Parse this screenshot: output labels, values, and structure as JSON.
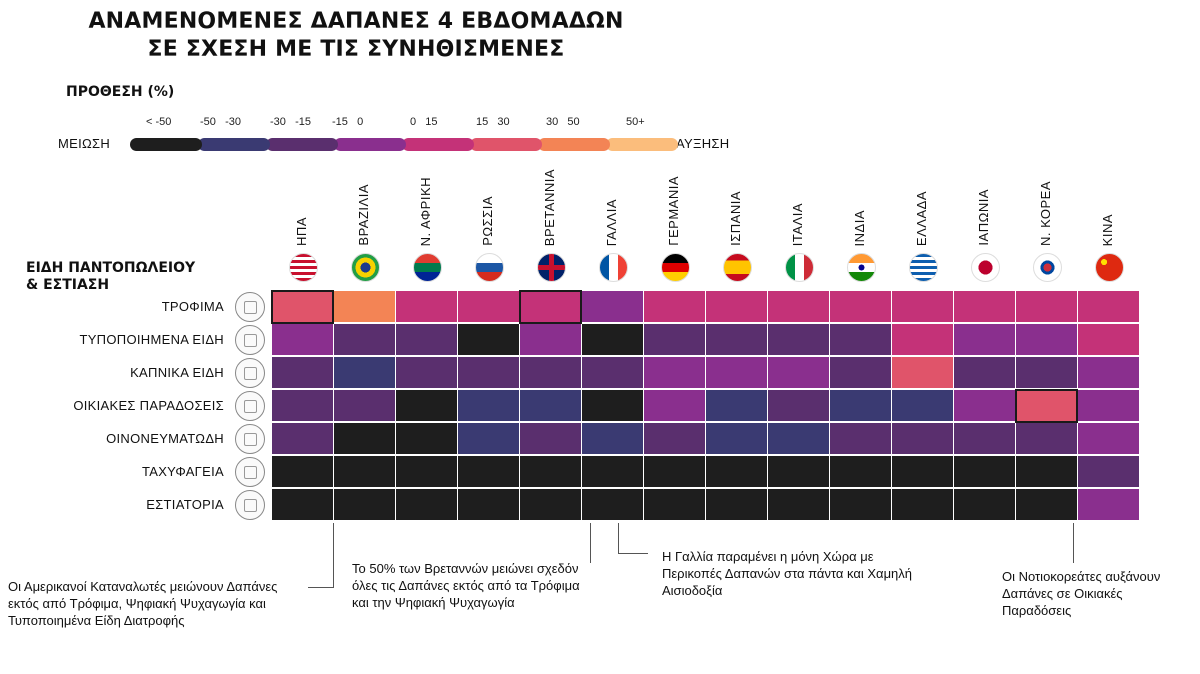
{
  "title": [
    "ΑΝΑΜΕΝΟΜΕΝΕΣ ΔΑΠΑΝΕΣ 4 ΕΒΔΟΜΑΔΩΝ",
    "ΣΕ ΣΧΕΣΗ ΜΕ ΤΙΣ ΣΥΝΗΘΙΣΜΕΝΕΣ"
  ],
  "legend": {
    "heading": "ΠΡΟΘΕΣΗ (%)",
    "left_word": "ΜΕΙΩΣΗ",
    "right_word": "ΑΥΞΗΣΗ",
    "bins": [
      {
        "label": "< -50",
        "color": "#1e1e1e"
      },
      {
        "label": "-50   -30",
        "color": "#3a3a72"
      },
      {
        "label": "-30   -15",
        "color": "#5a2f6e"
      },
      {
        "label": "-15   0",
        "color": "#8a2f8e"
      },
      {
        "label": "0   15",
        "color": "#c43278"
      },
      {
        "label": "15   30",
        "color": "#e0546a"
      },
      {
        "label": "30   50",
        "color": "#f38455"
      },
      {
        "label": "50+",
        "color": "#fbbd7c"
      }
    ]
  },
  "section_title": [
    "ΕΙΔΗ ΠΑΝΤΟΠΩΛΕΙΟΥ",
    "& ΕΣΤΙΑΣΗ"
  ],
  "chart_data": {
    "type": "heatmap",
    "columns": [
      "ΗΠΑ",
      "ΒΡΑΖΙΛΙΑ",
      "Ν. ΑΦΡΙΚΗ",
      "ΡΩΣΣΙΑ",
      "ΒΡΕΤΑΝΝΙΑ",
      "ΓΑΛΛΙΑ",
      "ΓΕΡΜΑΝΙΑ",
      "ΙΣΠΑΝΙΑ",
      "ΙΤΑΛΙΑ",
      "ΙΝΔΙΑ",
      "ΕΛΛΑΔΑ",
      "ΙΑΠΩΝΙΑ",
      "Ν. ΚΟΡΕΑ",
      "ΚΙΝΑ"
    ],
    "flags": [
      "us",
      "br",
      "za",
      "ru",
      "gb",
      "fr",
      "de",
      "es",
      "it",
      "in",
      "gr",
      "jp",
      "kr",
      "cn"
    ],
    "rows": [
      "ΤΡΟΦΙΜΑ",
      "ΤΥΠΟΠΟΙΗΜΕΝΑ ΕΙΔΗ",
      "ΚΑΠΝΙΚΑ ΕΙΔΗ",
      "ΟΙΚΙΑΚΕΣ ΠΑΡΑΔΟΣΕΙΣ",
      "ΟΙΝΟΝΕΥΜΑΤΩΔΗ",
      "ΤΑΧΥΦΑΓΕΙΑ",
      "ΕΣΤΙΑΤΟΡΙΑ"
    ],
    "row_icons": [
      "shopping-basket-icon",
      "packaged-goods-icon",
      "cigarette-icon",
      "delivery-icon",
      "bottle-icon",
      "fast-food-icon",
      "restaurant-icon"
    ],
    "bin_index": [
      [
        5,
        6,
        4,
        4,
        4,
        3,
        4,
        4,
        4,
        4,
        4,
        4,
        4,
        4
      ],
      [
        3,
        2,
        2,
        0,
        3,
        0,
        2,
        2,
        2,
        2,
        4,
        3,
        3,
        4
      ],
      [
        2,
        1,
        2,
        2,
        2,
        2,
        3,
        3,
        3,
        2,
        5,
        2,
        2,
        3
      ],
      [
        2,
        2,
        0,
        1,
        1,
        0,
        3,
        1,
        2,
        1,
        1,
        3,
        5,
        3
      ],
      [
        2,
        0,
        0,
        1,
        2,
        1,
        2,
        1,
        1,
        2,
        2,
        2,
        2,
        3
      ],
      [
        0,
        0,
        0,
        0,
        0,
        0,
        0,
        0,
        0,
        0,
        0,
        0,
        0,
        2
      ],
      [
        0,
        0,
        0,
        0,
        0,
        0,
        0,
        0,
        0,
        0,
        0,
        0,
        0,
        3
      ]
    ],
    "highlights": [
      {
        "row": 0,
        "col": 0
      },
      {
        "row": 0,
        "col": 4
      },
      {
        "row": 3,
        "col": 12
      }
    ]
  },
  "notes": {
    "usa": "Οι Αμερικανοί Καταναλωτές μειώνουν Δαπάνες εκτός από Τρόφιμα, Ψηφιακή Ψυχαγωγία και Τυποποιημένα Είδη Διατροφής",
    "uk": "Το 50% των Βρεταννών μειώνει σχεδόν όλες τις Δαπάνες εκτός από τα Τρόφιμα και την Ψηφιακή Ψυχαγωγία",
    "france": "Η Γαλλία παραμένει η μόνη Χώρα με Περικοπές Δαπανών στα πάντα και Χαμηλή Αισιοδοξία",
    "korea": "Οι Νοτιοκορεάτες αυξάνουν Δαπάνες σε Οικιακές Παραδόσεις"
  }
}
